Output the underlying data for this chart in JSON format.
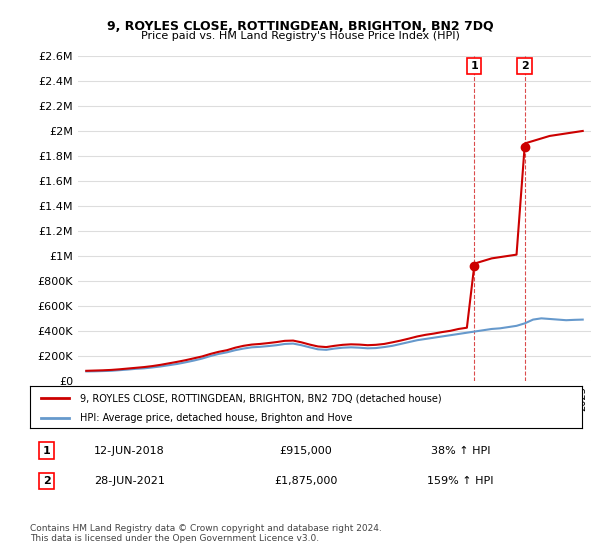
{
  "title": "9, ROYLES CLOSE, ROTTINGDEAN, BRIGHTON, BN2 7DQ",
  "subtitle": "Price paid vs. HM Land Registry's House Price Index (HPI)",
  "legend_line1": "9, ROYLES CLOSE, ROTTINGDEAN, BRIGHTON, BN2 7DQ (detached house)",
  "legend_line2": "HPI: Average price, detached house, Brighton and Hove",
  "footer": "Contains HM Land Registry data © Crown copyright and database right 2024.\nThis data is licensed under the Open Government Licence v3.0.",
  "annotation1_label": "1",
  "annotation1_date": "12-JUN-2018",
  "annotation1_price": "£915,000",
  "annotation1_hpi": "38% ↑ HPI",
  "annotation2_label": "2",
  "annotation2_date": "28-JUN-2021",
  "annotation2_price": "£1,875,000",
  "annotation2_hpi": "159% ↑ HPI",
  "point1_x": 2018.44,
  "point1_y": 915000,
  "point2_x": 2021.49,
  "point2_y": 1875000,
  "red_color": "#cc0000",
  "blue_color": "#6699cc",
  "ylim": [
    0,
    2600000
  ],
  "xlim": [
    1994.5,
    2025.5
  ],
  "background_color": "#ffffff",
  "grid_color": "#dddddd",
  "hpi_x": [
    1995,
    1995.5,
    1996,
    1996.5,
    1997,
    1997.5,
    1998,
    1998.5,
    1999,
    1999.5,
    2000,
    2000.5,
    2001,
    2001.5,
    2002,
    2002.5,
    2003,
    2003.5,
    2004,
    2004.5,
    2005,
    2005.5,
    2006,
    2006.5,
    2007,
    2007.5,
    2008,
    2008.5,
    2009,
    2009.5,
    2010,
    2010.5,
    2011,
    2011.5,
    2012,
    2012.5,
    2013,
    2013.5,
    2014,
    2014.5,
    2015,
    2015.5,
    2016,
    2016.5,
    2017,
    2017.5,
    2018,
    2018.5,
    2019,
    2019.5,
    2020,
    2020.5,
    2021,
    2021.5,
    2022,
    2022.5,
    2023,
    2023.5,
    2024,
    2024.5,
    2025
  ],
  "hpi_y": [
    75000,
    76000,
    78000,
    80000,
    85000,
    90000,
    96000,
    100000,
    107000,
    115000,
    125000,
    135000,
    148000,
    162000,
    178000,
    198000,
    215000,
    228000,
    245000,
    258000,
    268000,
    272000,
    278000,
    285000,
    295000,
    298000,
    285000,
    268000,
    252000,
    248000,
    258000,
    265000,
    268000,
    265000,
    260000,
    262000,
    270000,
    280000,
    295000,
    310000,
    325000,
    335000,
    345000,
    355000,
    365000,
    375000,
    385000,
    395000,
    405000,
    415000,
    420000,
    430000,
    440000,
    460000,
    490000,
    500000,
    495000,
    490000,
    485000,
    488000,
    490000
  ],
  "red_x": [
    1995,
    1995.5,
    1996,
    1996.5,
    1997,
    1997.5,
    1998,
    1998.5,
    1999,
    1999.5,
    2000,
    2000.5,
    2001,
    2001.5,
    2002,
    2002.5,
    2003,
    2003.5,
    2004,
    2004.5,
    2005,
    2005.5,
    2006,
    2006.5,
    2007,
    2007.5,
    2008,
    2008.5,
    2009,
    2009.5,
    2010,
    2010.5,
    2011,
    2011.5,
    2012,
    2012.5,
    2013,
    2013.5,
    2014,
    2014.5,
    2015,
    2015.5,
    2016,
    2016.5,
    2017,
    2017.5,
    2018,
    2018.44,
    2018.5,
    2019,
    2019.5,
    2020,
    2020.5,
    2021,
    2021.49,
    2021.5,
    2022,
    2022.5,
    2023,
    2023.5,
    2024,
    2024.5,
    2025
  ],
  "red_y": [
    80000,
    82000,
    84000,
    87000,
    92000,
    98000,
    104000,
    110000,
    118000,
    128000,
    140000,
    152000,
    165000,
    180000,
    195000,
    215000,
    232000,
    245000,
    265000,
    280000,
    290000,
    295000,
    302000,
    310000,
    320000,
    322000,
    308000,
    290000,
    275000,
    270000,
    280000,
    288000,
    292000,
    290000,
    285000,
    288000,
    295000,
    308000,
    322000,
    338000,
    355000,
    368000,
    378000,
    390000,
    400000,
    415000,
    425000,
    915000,
    940000,
    960000,
    980000,
    990000,
    1000000,
    1010000,
    1875000,
    1900000,
    1920000,
    1940000,
    1960000,
    1970000,
    1980000,
    1990000,
    2000000
  ]
}
